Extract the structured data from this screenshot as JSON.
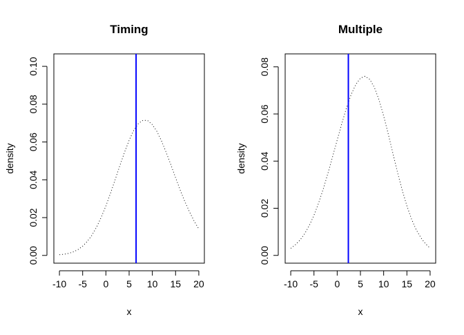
{
  "chart_data": [
    {
      "type": "line",
      "title": "Timing",
      "xlabel": "x",
      "ylabel": "density",
      "xlim": [
        -11.2,
        21.2
      ],
      "ylim": [
        -0.0041,
        0.1066
      ],
      "xticks": [
        -10,
        -5,
        0,
        5,
        10,
        15,
        20
      ],
      "xtick_labels": [
        "-10",
        "-5",
        "0",
        "5",
        "10",
        "15",
        "20"
      ],
      "yticks": [
        0.0,
        0.02,
        0.04,
        0.06,
        0.08,
        0.1
      ],
      "ytick_labels": [
        "0.00",
        "0.02",
        "0.04",
        "0.06",
        "0.08",
        "0.10"
      ],
      "grid": false,
      "series": [
        {
          "style": "dotted",
          "color": "#000000",
          "x": [
            -10,
            -9,
            -8,
            -7,
            -6,
            -5,
            -4,
            -3,
            -2,
            -1,
            0,
            1,
            2,
            3,
            4,
            5,
            6,
            6.5,
            7,
            8,
            9,
            10,
            11,
            12,
            13,
            14,
            15,
            16,
            17,
            18,
            19,
            20
          ],
          "y": [
            0.0004,
            0.0006,
            0.0011,
            0.0019,
            0.0031,
            0.0049,
            0.0074,
            0.0107,
            0.015,
            0.0202,
            0.0262,
            0.033,
            0.0401,
            0.0474,
            0.0545,
            0.0609,
            0.0662,
            0.068,
            0.0698,
            0.0715,
            0.0713,
            0.0692,
            0.0655,
            0.0604,
            0.0544,
            0.0478,
            0.0411,
            0.0346,
            0.0285,
            0.023,
            0.0181,
            0.014
          ]
        }
      ],
      "vline": {
        "x": 6.5,
        "color": "#0000ff"
      }
    },
    {
      "type": "line",
      "title": "Multiple",
      "xlabel": "x",
      "ylabel": "density",
      "xlim": [
        -11.2,
        21.2
      ],
      "ylim": [
        -0.0033,
        0.0855
      ],
      "xticks": [
        -10,
        -5,
        0,
        5,
        10,
        15,
        20
      ],
      "xtick_labels": [
        "-10",
        "-5",
        "0",
        "5",
        "10",
        "15",
        "20"
      ],
      "yticks": [
        0.0,
        0.02,
        0.04,
        0.06,
        0.08
      ],
      "ytick_labels": [
        "0.00",
        "0.02",
        "0.04",
        "0.06",
        "0.08"
      ],
      "grid": false,
      "series": [
        {
          "style": "dotted",
          "color": "#000000",
          "x": [
            -10,
            -9,
            -8,
            -7,
            -6,
            -5,
            -4,
            -3,
            -2,
            -1,
            0,
            1,
            2,
            2.4,
            3,
            4,
            5,
            6,
            7,
            8,
            9,
            10,
            11,
            12,
            13,
            14,
            15,
            16,
            17,
            18,
            19,
            20
          ],
          "y": [
            0.003,
            0.0045,
            0.0065,
            0.0092,
            0.0127,
            0.017,
            0.0222,
            0.0282,
            0.0348,
            0.0418,
            0.049,
            0.056,
            0.0626,
            0.0648,
            0.0682,
            0.0725,
            0.0752,
            0.076,
            0.0747,
            0.0713,
            0.066,
            0.0592,
            0.0514,
            0.0432,
            0.0351,
            0.0276,
            0.021,
            0.0154,
            0.0109,
            0.0075,
            0.0049,
            0.0031
          ]
        }
      ],
      "vline": {
        "x": 2.4,
        "color": "#0000ff"
      }
    }
  ]
}
